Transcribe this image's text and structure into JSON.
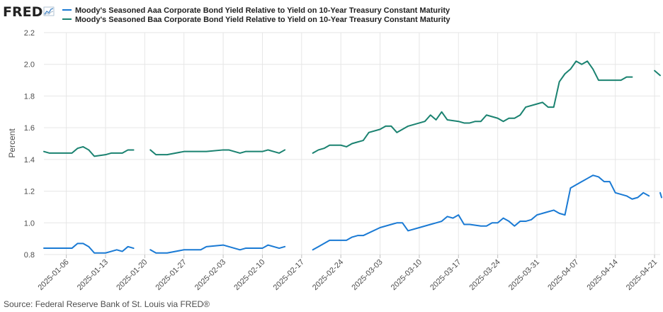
{
  "logo": {
    "text": "FRED",
    "icon": "chart-line-icon"
  },
  "source": "Source: Federal Reserve Bank of St. Louis via FRED®",
  "colors": {
    "series_aaa": "#1a7ad4",
    "series_baa": "#1a8270",
    "grid": "#e6e6e6",
    "text": "#4d4d4d"
  },
  "chart_data": {
    "type": "line",
    "title": "",
    "xlabel": "",
    "ylabel": "Percent",
    "ylim": [
      0.8,
      2.2
    ],
    "yticks": [
      0.8,
      1.0,
      1.2,
      1.4,
      1.6,
      1.8,
      2.0,
      2.2
    ],
    "ytick_labels": [
      "0.8",
      "1.0",
      "1.2",
      "1.4",
      "1.6",
      "1.8",
      "2.0",
      "2.2"
    ],
    "xlim": [
      "2025-01-02",
      "2025-04-22"
    ],
    "xticks": [
      "2025-01-06",
      "2025-01-13",
      "2025-01-20",
      "2025-01-27",
      "2025-02-03",
      "2025-02-10",
      "2025-02-17",
      "2025-02-24",
      "2025-03-03",
      "2025-03-10",
      "2025-03-17",
      "2025-03-24",
      "2025-03-31",
      "2025-04-07",
      "2025-04-14",
      "2025-04-21"
    ],
    "grid": true,
    "legend_position": "top-left",
    "series": [
      {
        "name": "Moody's Seasoned Aaa Corporate Bond Yield Relative to Yield on 10-Year Treasury Constant Maturity",
        "color": "#1a7ad4",
        "points": [
          [
            "2025-01-02",
            0.84
          ],
          [
            "2025-01-03",
            0.84
          ],
          [
            "2025-01-06",
            0.84
          ],
          [
            "2025-01-07",
            0.84
          ],
          [
            "2025-01-08",
            0.87
          ],
          [
            "2025-01-09",
            0.87
          ],
          [
            "2025-01-10",
            0.85
          ],
          [
            "2025-01-11",
            0.81
          ],
          [
            "2025-01-13",
            0.81
          ],
          [
            "2025-01-14",
            0.82
          ],
          [
            "2025-01-15",
            0.83
          ],
          [
            "2025-01-16",
            0.82
          ],
          [
            "2025-01-17",
            0.85
          ],
          [
            "2025-01-18",
            0.84
          ],
          null,
          [
            "2025-01-21",
            0.83
          ],
          [
            "2025-01-22",
            0.81
          ],
          [
            "2025-01-23",
            0.81
          ],
          [
            "2025-01-24",
            0.81
          ],
          [
            "2025-01-27",
            0.83
          ],
          [
            "2025-01-28",
            0.83
          ],
          [
            "2025-01-29",
            0.83
          ],
          [
            "2025-01-30",
            0.83
          ],
          [
            "2025-01-31",
            0.85
          ],
          [
            "2025-02-03",
            0.86
          ],
          [
            "2025-02-04",
            0.85
          ],
          [
            "2025-02-05",
            0.84
          ],
          [
            "2025-02-06",
            0.83
          ],
          [
            "2025-02-07",
            0.84
          ],
          [
            "2025-02-10",
            0.84
          ],
          [
            "2025-02-11",
            0.86
          ],
          [
            "2025-02-12",
            0.85
          ],
          [
            "2025-02-13",
            0.84
          ],
          [
            "2025-02-14",
            0.85
          ],
          null,
          [
            "2025-02-19",
            0.83
          ],
          [
            "2025-02-20",
            0.85
          ],
          [
            "2025-02-21",
            0.87
          ],
          [
            "2025-02-22",
            0.89
          ],
          [
            "2025-02-24",
            0.89
          ],
          [
            "2025-02-25",
            0.89
          ],
          [
            "2025-02-26",
            0.91
          ],
          [
            "2025-02-27",
            0.92
          ],
          [
            "2025-02-28",
            0.92
          ],
          [
            "2025-03-03",
            0.97
          ],
          [
            "2025-03-04",
            0.98
          ],
          [
            "2025-03-05",
            0.99
          ],
          [
            "2025-03-06",
            1.0
          ],
          [
            "2025-03-07",
            1.0
          ],
          [
            "2025-03-08",
            0.95
          ],
          [
            "2025-03-10",
            0.97
          ],
          [
            "2025-03-11",
            0.98
          ],
          [
            "2025-03-12",
            0.99
          ],
          [
            "2025-03-13",
            1.0
          ],
          [
            "2025-03-14",
            1.01
          ],
          [
            "2025-03-15",
            1.04
          ],
          [
            "2025-03-16",
            1.03
          ],
          [
            "2025-03-17",
            1.05
          ],
          [
            "2025-03-18",
            0.99
          ],
          [
            "2025-03-19",
            0.99
          ],
          [
            "2025-03-21",
            0.98
          ],
          [
            "2025-03-22",
            0.98
          ],
          [
            "2025-03-23",
            1.0
          ],
          [
            "2025-03-24",
            1.0
          ],
          [
            "2025-03-25",
            1.03
          ],
          [
            "2025-03-26",
            1.01
          ],
          [
            "2025-03-27",
            0.98
          ],
          [
            "2025-03-28",
            1.01
          ],
          [
            "2025-03-29",
            1.01
          ],
          [
            "2025-03-30",
            1.02
          ],
          [
            "2025-03-31",
            1.05
          ],
          [
            "2025-04-01",
            1.06
          ],
          [
            "2025-04-02",
            1.07
          ],
          [
            "2025-04-03",
            1.08
          ],
          [
            "2025-04-04",
            1.06
          ],
          [
            "2025-04-05",
            1.05
          ],
          [
            "2025-04-06",
            1.22
          ],
          [
            "2025-04-07",
            1.24
          ],
          [
            "2025-04-08",
            1.26
          ],
          [
            "2025-04-09",
            1.28
          ],
          [
            "2025-04-10",
            1.3
          ],
          [
            "2025-04-11",
            1.29
          ],
          [
            "2025-04-12",
            1.26
          ],
          [
            "2025-04-13",
            1.26
          ],
          [
            "2025-04-14",
            1.19
          ],
          [
            "2025-04-15",
            1.18
          ],
          [
            "2025-04-16",
            1.17
          ],
          [
            "2025-04-17",
            1.15
          ],
          [
            "2025-04-18",
            1.16
          ],
          [
            "2025-04-19",
            1.19
          ],
          [
            "2025-04-20",
            1.17
          ],
          null,
          [
            "2025-04-22",
            1.19
          ],
          [
            "2025-04-23",
            1.16
          ]
        ]
      },
      {
        "name": "Moody's Seasoned Baa Corporate Bond Yield Relative to Yield on 10-Year Treasury Constant Maturity",
        "color": "#1a8270",
        "points": [
          [
            "2025-01-02",
            1.45
          ],
          [
            "2025-01-03",
            1.44
          ],
          [
            "2025-01-06",
            1.44
          ],
          [
            "2025-01-07",
            1.44
          ],
          [
            "2025-01-08",
            1.47
          ],
          [
            "2025-01-09",
            1.48
          ],
          [
            "2025-01-10",
            1.46
          ],
          [
            "2025-01-11",
            1.42
          ],
          [
            "2025-01-13",
            1.43
          ],
          [
            "2025-01-14",
            1.44
          ],
          [
            "2025-01-15",
            1.44
          ],
          [
            "2025-01-16",
            1.44
          ],
          [
            "2025-01-17",
            1.46
          ],
          [
            "2025-01-18",
            1.46
          ],
          null,
          [
            "2025-01-21",
            1.46
          ],
          [
            "2025-01-22",
            1.43
          ],
          [
            "2025-01-23",
            1.43
          ],
          [
            "2025-01-24",
            1.43
          ],
          [
            "2025-01-27",
            1.45
          ],
          [
            "2025-01-28",
            1.45
          ],
          [
            "2025-01-29",
            1.45
          ],
          [
            "2025-01-30",
            1.45
          ],
          [
            "2025-01-31",
            1.45
          ],
          [
            "2025-02-03",
            1.46
          ],
          [
            "2025-02-04",
            1.46
          ],
          [
            "2025-02-05",
            1.45
          ],
          [
            "2025-02-06",
            1.44
          ],
          [
            "2025-02-07",
            1.45
          ],
          [
            "2025-02-10",
            1.45
          ],
          [
            "2025-02-11",
            1.46
          ],
          [
            "2025-02-12",
            1.45
          ],
          [
            "2025-02-13",
            1.44
          ],
          [
            "2025-02-14",
            1.46
          ],
          null,
          [
            "2025-02-19",
            1.44
          ],
          [
            "2025-02-20",
            1.46
          ],
          [
            "2025-02-21",
            1.47
          ],
          [
            "2025-02-22",
            1.49
          ],
          [
            "2025-02-24",
            1.49
          ],
          [
            "2025-02-25",
            1.48
          ],
          [
            "2025-02-26",
            1.5
          ],
          [
            "2025-02-27",
            1.51
          ],
          [
            "2025-02-28",
            1.52
          ],
          [
            "2025-03-01",
            1.57
          ],
          [
            "2025-03-03",
            1.59
          ],
          [
            "2025-03-04",
            1.61
          ],
          [
            "2025-03-05",
            1.61
          ],
          [
            "2025-03-06",
            1.57
          ],
          [
            "2025-03-07",
            1.59
          ],
          [
            "2025-03-08",
            1.61
          ],
          [
            "2025-03-10",
            1.63
          ],
          [
            "2025-03-11",
            1.64
          ],
          [
            "2025-03-12",
            1.68
          ],
          [
            "2025-03-13",
            1.65
          ],
          [
            "2025-03-14",
            1.7
          ],
          [
            "2025-03-15",
            1.65
          ],
          [
            "2025-03-17",
            1.64
          ],
          [
            "2025-03-18",
            1.63
          ],
          [
            "2025-03-19",
            1.63
          ],
          [
            "2025-03-20",
            1.64
          ],
          [
            "2025-03-21",
            1.64
          ],
          [
            "2025-03-22",
            1.68
          ],
          [
            "2025-03-24",
            1.66
          ],
          [
            "2025-03-25",
            1.64
          ],
          [
            "2025-03-26",
            1.66
          ],
          [
            "2025-03-27",
            1.66
          ],
          [
            "2025-03-28",
            1.68
          ],
          [
            "2025-03-29",
            1.73
          ],
          [
            "2025-03-31",
            1.75
          ],
          [
            "2025-04-01",
            1.76
          ],
          [
            "2025-04-02",
            1.73
          ],
          [
            "2025-04-03",
            1.73
          ],
          [
            "2025-04-04",
            1.89
          ],
          [
            "2025-04-05",
            1.94
          ],
          [
            "2025-04-06",
            1.97
          ],
          [
            "2025-04-07",
            2.02
          ],
          [
            "2025-04-08",
            2.0
          ],
          [
            "2025-04-09",
            2.02
          ],
          [
            "2025-04-10",
            1.97
          ],
          [
            "2025-04-11",
            1.9
          ],
          [
            "2025-04-12",
            1.9
          ],
          [
            "2025-04-13",
            1.9
          ],
          [
            "2025-04-14",
            1.9
          ],
          [
            "2025-04-15",
            1.9
          ],
          [
            "2025-04-16",
            1.92
          ],
          [
            "2025-04-17",
            1.92
          ],
          null,
          [
            "2025-04-21",
            1.96
          ],
          [
            "2025-04-22",
            1.93
          ]
        ]
      }
    ]
  }
}
